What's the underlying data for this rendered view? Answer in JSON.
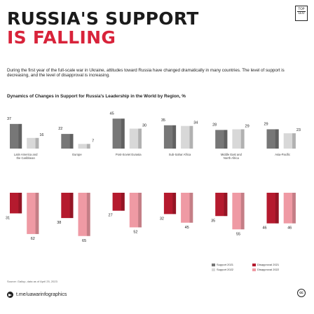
{
  "header": {
    "title_line1": "RUSSIA'S SUPPORT",
    "title_line2": "IS FALLING",
    "logo_line1": "TOP",
    "logo_line2": "LEO"
  },
  "intro": "During the first year of the full-scale war in Ukraine, attitudes toward Russia have changed dramatically in many countries. The level of support is decreasing, and the level of disapproval is increasing.",
  "subtitle": "Dynamics of Changes in Support for Russia's Leadership in the World by Region, %",
  "legend": {
    "support_2021": "Support 2021",
    "support_2022": "Support 2022",
    "disapproval_2021": "Disapproval 2021",
    "disapproval_2022": "Disapproval 2022"
  },
  "source": "Source: Gallup, data as of April 25, 2023",
  "footer": {
    "handle": "t.me/uawarinfographics",
    "cc": "cc"
  },
  "colors": {
    "title_red": "#d8233a",
    "support_2021": "#777777",
    "support_2022": "#d8d8d8",
    "disapproval_2021": "#b51a2e",
    "disapproval_2022": "#ef9aa4"
  },
  "chart_data": {
    "type": "bar",
    "categories": [
      "Latin America and the Caribbean",
      "Europe",
      "Post-Soviet Eurasia",
      "Sub-Sahar Africa",
      "Middle East and North Africa",
      "Asia-Pacific"
    ],
    "series": [
      {
        "name": "Support 2021",
        "values": [
          37,
          22,
          45,
          35,
          28,
          29
        ]
      },
      {
        "name": "Support 2022",
        "values": [
          16,
          7,
          30,
          34,
          29,
          23
        ]
      },
      {
        "name": "Disapproval 2021",
        "values": [
          31,
          38,
          27,
          32,
          35,
          46
        ]
      },
      {
        "name": "Disapproval 2022",
        "values": [
          62,
          65,
          52,
          45,
          55,
          46
        ]
      }
    ],
    "value_labels": {
      "support_2021": [
        "37",
        "22",
        "45",
        "35",
        "28",
        "29"
      ],
      "support_2022": [
        "16",
        "7",
        "30",
        "34",
        "29",
        "23"
      ],
      "disapproval_2021": [
        "31",
        "38",
        "27",
        "32",
        "35",
        "46"
      ],
      "disapproval_2022": [
        "62",
        "65",
        "52",
        "45",
        "55",
        "46"
      ]
    },
    "title": "Dynamics of Changes in Support for Russia's Leadership in the World by Region, %",
    "xlabel": "",
    "ylabel": "",
    "grid": false,
    "legend_position": "bottom-right"
  }
}
